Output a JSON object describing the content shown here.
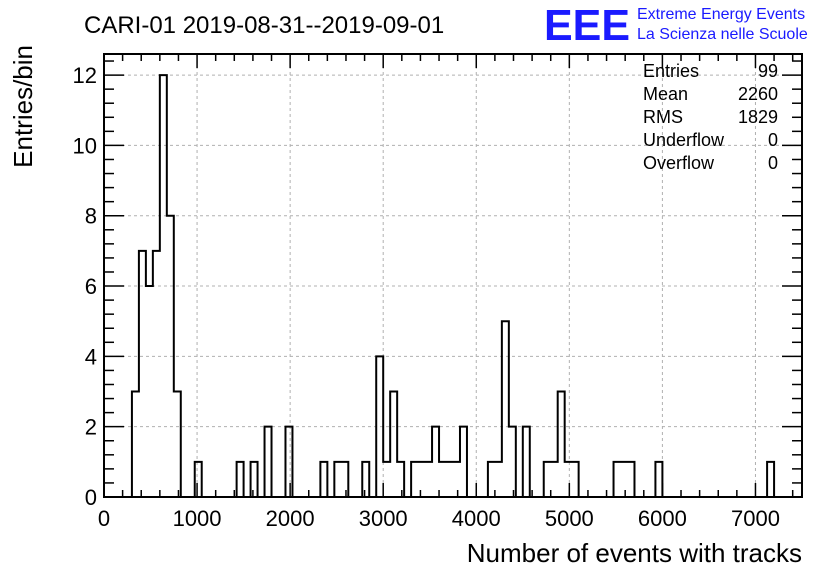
{
  "chart_data": {
    "type": "bar",
    "title": "CARI-01 2019-08-31--2019-09-01",
    "xlabel": "Number of events with tracks",
    "ylabel": "Entries/bin",
    "xlim": [
      0,
      7500
    ],
    "ylim": [
      0,
      12.6
    ],
    "bin_width": 75,
    "x_ticks": [
      0,
      1000,
      2000,
      3000,
      4000,
      5000,
      6000,
      7000
    ],
    "y_ticks": [
      0,
      2,
      4,
      6,
      8,
      10,
      12
    ],
    "grid": true,
    "bins": [
      {
        "x": 300,
        "count": 3
      },
      {
        "x": 375,
        "count": 7
      },
      {
        "x": 450,
        "count": 6
      },
      {
        "x": 525,
        "count": 7
      },
      {
        "x": 600,
        "count": 12
      },
      {
        "x": 675,
        "count": 8
      },
      {
        "x": 750,
        "count": 3
      },
      {
        "x": 975,
        "count": 1
      },
      {
        "x": 1425,
        "count": 1
      },
      {
        "x": 1575,
        "count": 1
      },
      {
        "x": 1725,
        "count": 2
      },
      {
        "x": 1950,
        "count": 2
      },
      {
        "x": 2325,
        "count": 1
      },
      {
        "x": 2475,
        "count": 1
      },
      {
        "x": 2550,
        "count": 1
      },
      {
        "x": 2775,
        "count": 1
      },
      {
        "x": 2925,
        "count": 4
      },
      {
        "x": 3000,
        "count": 1
      },
      {
        "x": 3075,
        "count": 3
      },
      {
        "x": 3150,
        "count": 1
      },
      {
        "x": 3300,
        "count": 1
      },
      {
        "x": 3375,
        "count": 1
      },
      {
        "x": 3450,
        "count": 1
      },
      {
        "x": 3525,
        "count": 2
      },
      {
        "x": 3600,
        "count": 1
      },
      {
        "x": 3675,
        "count": 1
      },
      {
        "x": 3750,
        "count": 1
      },
      {
        "x": 3825,
        "count": 2
      },
      {
        "x": 4125,
        "count": 1
      },
      {
        "x": 4200,
        "count": 1
      },
      {
        "x": 4275,
        "count": 5
      },
      {
        "x": 4350,
        "count": 2
      },
      {
        "x": 4500,
        "count": 2
      },
      {
        "x": 4725,
        "count": 1
      },
      {
        "x": 4800,
        "count": 1
      },
      {
        "x": 4875,
        "count": 3
      },
      {
        "x": 4950,
        "count": 1
      },
      {
        "x": 5025,
        "count": 1
      },
      {
        "x": 5475,
        "count": 1
      },
      {
        "x": 5550,
        "count": 1
      },
      {
        "x": 5625,
        "count": 1
      },
      {
        "x": 5925,
        "count": 1
      },
      {
        "x": 7125,
        "count": 1
      }
    ],
    "stats": [
      {
        "label": "Entries",
        "value": "99"
      },
      {
        "label": "Mean",
        "value": "2260"
      },
      {
        "label": "RMS",
        "value": "1829"
      },
      {
        "label": "Underflow",
        "value": "0"
      },
      {
        "label": "Overflow",
        "value": "0"
      }
    ]
  },
  "logo": {
    "mark": "EEE",
    "line1": "Extreme Energy Events",
    "line2": "La Scienza nelle Scuole",
    "color": "#1a1aff"
  }
}
